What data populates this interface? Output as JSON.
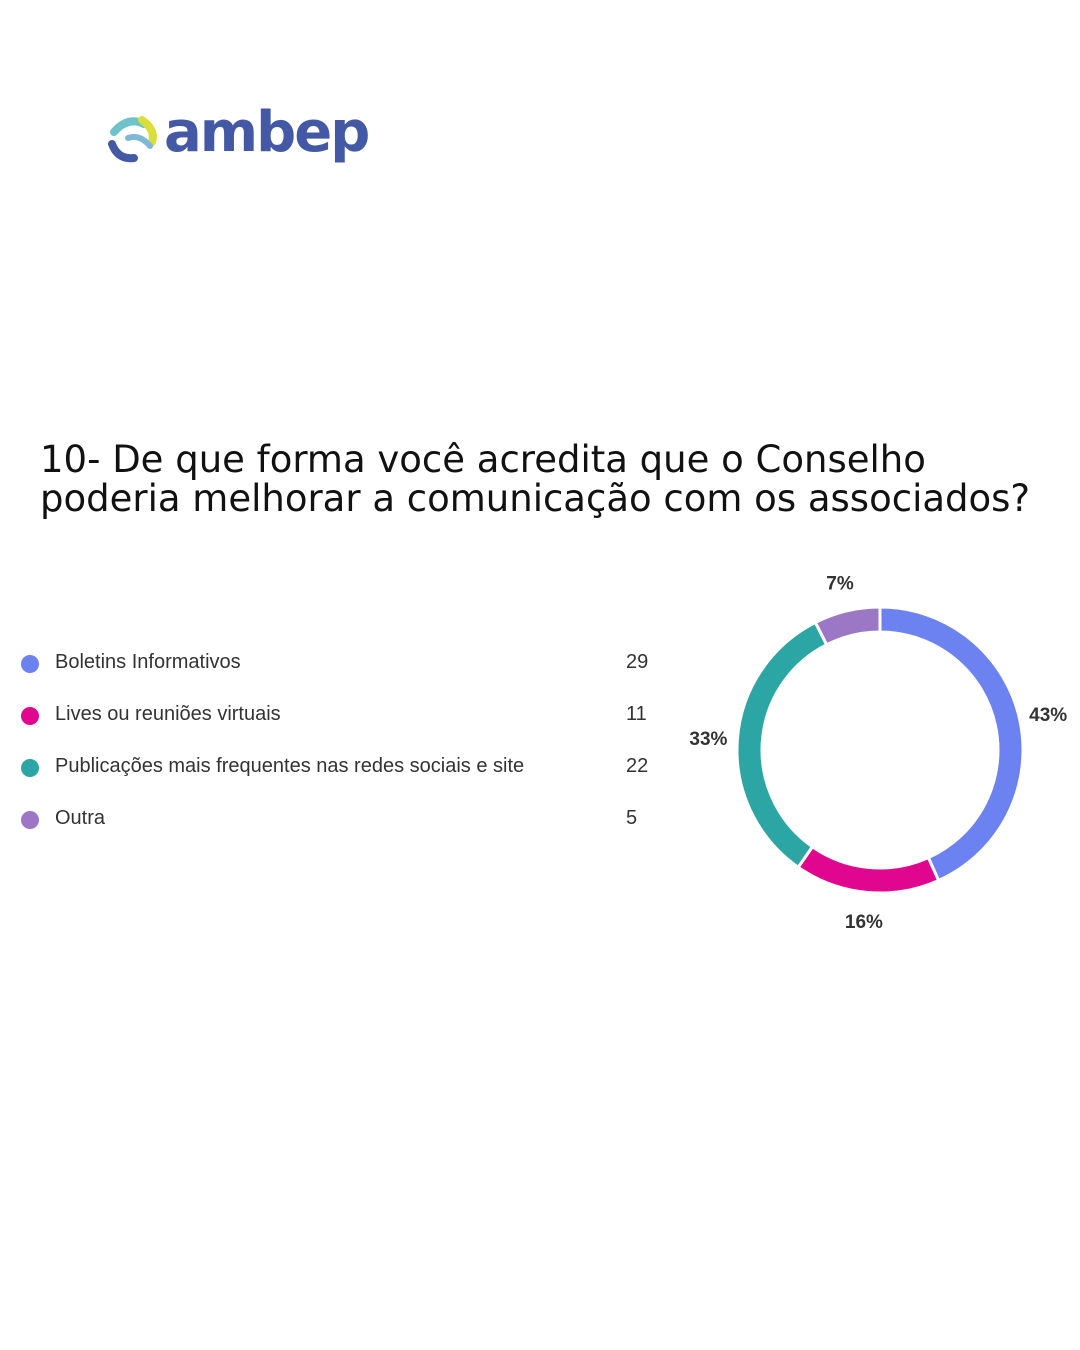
{
  "logo": {
    "text": "ambep"
  },
  "question": {
    "title": "10- De que forma você acredita que o Conselho poderia melhorar a comunicação com os associados?"
  },
  "chart_data": {
    "type": "pie",
    "title": "10- De que forma você acredita que o Conselho poderia melhorar a comunicação com os associados?",
    "categories": [
      "Boletins Informativos",
      "Lives ou reuniões virtuais",
      "Publicações mais frequentes nas redes sociais e site",
      "Outra"
    ],
    "values": [
      29,
      11,
      22,
      5
    ],
    "percent_labels": [
      "43%",
      "16%",
      "33%",
      "7%"
    ],
    "colors": [
      "#6b82f0",
      "#e0068f",
      "#2ca6a4",
      "#9b77c5"
    ],
    "legend_position": "left"
  }
}
